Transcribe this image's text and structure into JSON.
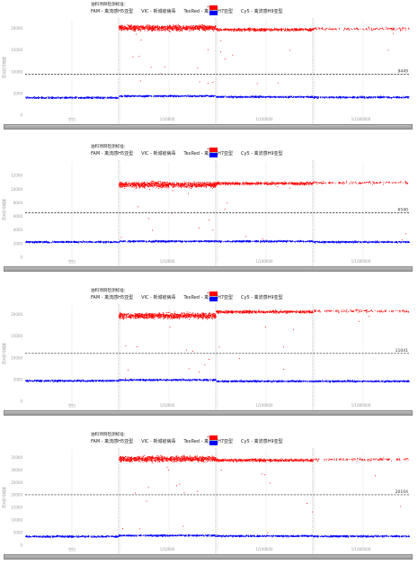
{
  "header": {
    "title": "油料项目检测标准：",
    "channels": [
      {
        "label": "FAM  -  禽流感H5亚型"
      },
      {
        "label": "VIC  -  新城疫病毒"
      },
      {
        "label": "TexRed  -  禽流感H7亚型"
      },
      {
        "label": "Cy5  -  禽流感H9亚型"
      }
    ]
  },
  "colors": {
    "positive": "#ff0000",
    "negative": "#0000ff",
    "threshold": "#222222",
    "grid": "#dddddd"
  },
  "chart_data": [
    {
      "type": "scatter",
      "panel": 1,
      "ylabel": "荧光信号幅度",
      "ylim": [
        0,
        22000
      ],
      "yticks": [
        0,
        5000,
        10000,
        15000,
        20000
      ],
      "ytick_labels": [
        "0",
        "5000",
        "10000",
        "15000",
        "20000"
      ],
      "x_tick_labels": [
        "空白",
        "1/10000",
        "1/100000",
        "1/1000000"
      ],
      "threshold": 9449,
      "threshold_label": "9449",
      "segments": [
        {
          "pos": null,
          "neg": 4100,
          "pos_density": 0
        },
        {
          "pos": 20200,
          "neg": 4500,
          "pos_density": 1.0
        },
        {
          "pos": 19800,
          "neg": 4300,
          "pos_density": 0.55
        },
        {
          "pos": 20000,
          "neg": 4200,
          "pos_density": 0.15
        }
      ]
    },
    {
      "type": "scatter",
      "panel": 2,
      "ylabel": "荧光信号幅度",
      "ylim": [
        0,
        14000
      ],
      "yticks": [
        0,
        2000,
        4000,
        6000,
        8000,
        10000,
        12000
      ],
      "ytick_labels": [
        "0",
        "2000",
        "4000",
        "6000",
        "8000",
        "10000",
        "12000"
      ],
      "x_tick_labels": [
        "空白",
        "1/10000",
        "1/100000",
        "1/1000000"
      ],
      "threshold": 6540,
      "threshold_label": "6540",
      "segments": [
        {
          "pos": null,
          "neg": 2300,
          "pos_density": 0
        },
        {
          "pos": 10700,
          "neg": 2400,
          "pos_density": 1.0
        },
        {
          "pos": 10900,
          "neg": 2400,
          "pos_density": 0.55
        },
        {
          "pos": 11000,
          "neg": 2300,
          "pos_density": 0.15
        }
      ]
    },
    {
      "type": "scatter",
      "panel": 3,
      "ylabel": "荧光信号幅度",
      "ylim": [
        0,
        22000
      ],
      "yticks": [
        0,
        5000,
        10000,
        15000,
        20000
      ],
      "ytick_labels": [
        "0",
        "5000",
        "10000",
        "15000",
        "20000"
      ],
      "x_tick_labels": [
        "空白",
        "1/10000",
        "1/100000",
        "1/1000000"
      ],
      "threshold": 11041,
      "threshold_label": "11041",
      "segments": [
        {
          "pos": null,
          "neg": 4800,
          "pos_density": 0
        },
        {
          "pos": 19800,
          "neg": 5000,
          "pos_density": 1.0
        },
        {
          "pos": 20700,
          "neg": 4700,
          "pos_density": 0.55
        },
        {
          "pos": 20900,
          "neg": 4700,
          "pos_density": 0.15
        }
      ]
    },
    {
      "type": "scatter",
      "panel": 4,
      "ylabel": "荧光信号幅度",
      "ylim": [
        0,
        38000
      ],
      "yticks": [
        0,
        5000,
        10000,
        15000,
        20000,
        25000,
        30000,
        35000
      ],
      "ytick_labels": [
        "0",
        "5000",
        "10000",
        "15000",
        "20000",
        "25000",
        "30000",
        "35000"
      ],
      "x_tick_labels": [
        "空白",
        "1/10000",
        "1/100000",
        "1/1000000"
      ],
      "threshold": 20104,
      "threshold_label": "20104",
      "segments": [
        {
          "pos": null,
          "neg": 3600,
          "pos_density": 0
        },
        {
          "pos": 34500,
          "neg": 4000,
          "pos_density": 1.0
        },
        {
          "pos": 34000,
          "neg": 3800,
          "pos_density": 0.55
        },
        {
          "pos": 34300,
          "neg": 3700,
          "pos_density": 0.15
        }
      ]
    }
  ]
}
